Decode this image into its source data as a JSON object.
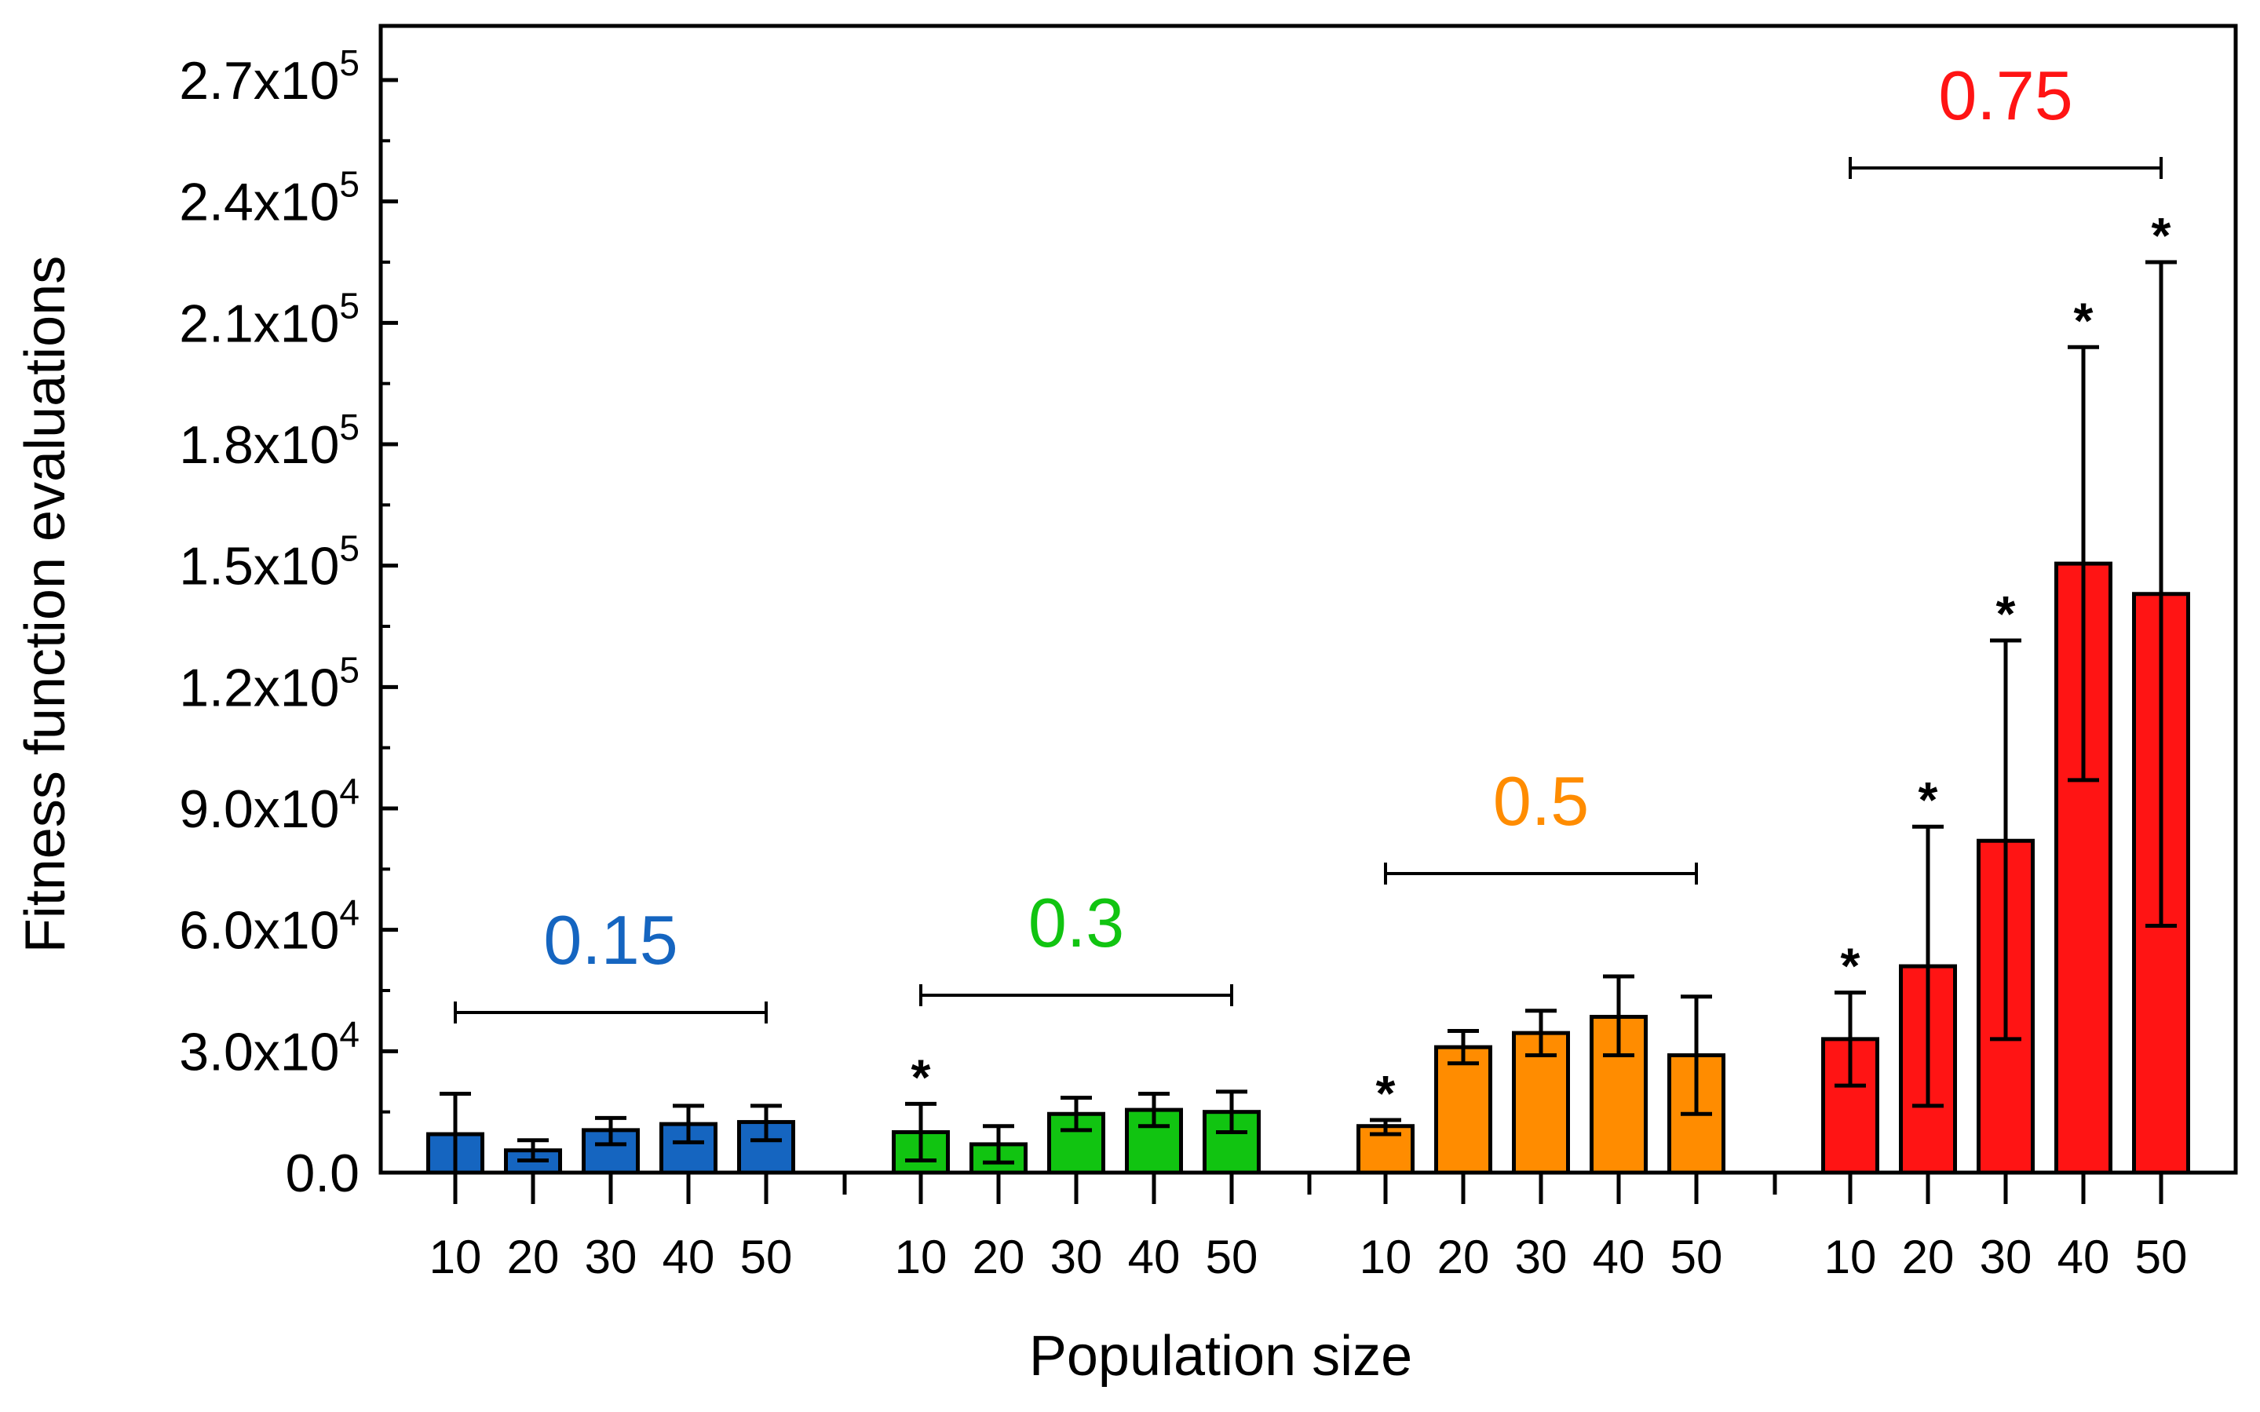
{
  "chart_data": {
    "type": "bar",
    "xlabel": "Population size",
    "ylabel": "Fitness function evaluations",
    "ylim": [
      0,
      270000
    ],
    "y_ticks": [
      {
        "value": 0,
        "mantissa": "0.0",
        "exponent": ""
      },
      {
        "value": 30000,
        "mantissa": "3.0x10",
        "exponent": "4"
      },
      {
        "value": 60000,
        "mantissa": "6.0x10",
        "exponent": "4"
      },
      {
        "value": 90000,
        "mantissa": "9.0x10",
        "exponent": "4"
      },
      {
        "value": 120000,
        "mantissa": "1.2x10",
        "exponent": "5"
      },
      {
        "value": 150000,
        "mantissa": "1.5x10",
        "exponent": "5"
      },
      {
        "value": 180000,
        "mantissa": "1.8x10",
        "exponent": "5"
      },
      {
        "value": 210000,
        "mantissa": "2.1x10",
        "exponent": "5"
      },
      {
        "value": 240000,
        "mantissa": "2.4x10",
        "exponent": "5"
      },
      {
        "value": 270000,
        "mantissa": "2.7x10",
        "exponent": "5"
      }
    ],
    "categories": [
      "10",
      "20",
      "30",
      "40",
      "50"
    ],
    "groups": [
      {
        "label": "0.15",
        "color": "#1565C0",
        "values": [
          9500,
          5500,
          10500,
          12000,
          12500
        ],
        "err_low": [
          0,
          3000,
          7000,
          7500,
          8000
        ],
        "err_high": [
          19500,
          8000,
          13500,
          16500,
          16500
        ],
        "significant": [
          false,
          false,
          false,
          false,
          false
        ]
      },
      {
        "label": "0.3",
        "color": "#11C411",
        "values": [
          10000,
          7000,
          14500,
          15500,
          15000
        ],
        "err_low": [
          3000,
          2500,
          10500,
          11500,
          10000
        ],
        "err_high": [
          17000,
          11500,
          18500,
          19500,
          20000
        ],
        "significant": [
          true,
          false,
          false,
          false,
          false
        ]
      },
      {
        "label": "0.5",
        "color": "#FF8C00",
        "values": [
          11500,
          31000,
          34500,
          38500,
          29000
        ],
        "err_low": [
          9500,
          27000,
          29000,
          29000,
          14500
        ],
        "err_high": [
          13000,
          35000,
          40000,
          48500,
          43500
        ],
        "significant": [
          true,
          false,
          false,
          false,
          false
        ]
      },
      {
        "label": "0.75",
        "color": "#FF1414",
        "values": [
          33000,
          51000,
          82000,
          150500,
          143000
        ],
        "err_low": [
          21500,
          16500,
          33000,
          97000,
          61000
        ],
        "err_high": [
          44500,
          85500,
          131500,
          204000,
          225000
        ],
        "significant": [
          true,
          true,
          true,
          true,
          true
        ]
      }
    ],
    "significance_marker": "*"
  }
}
